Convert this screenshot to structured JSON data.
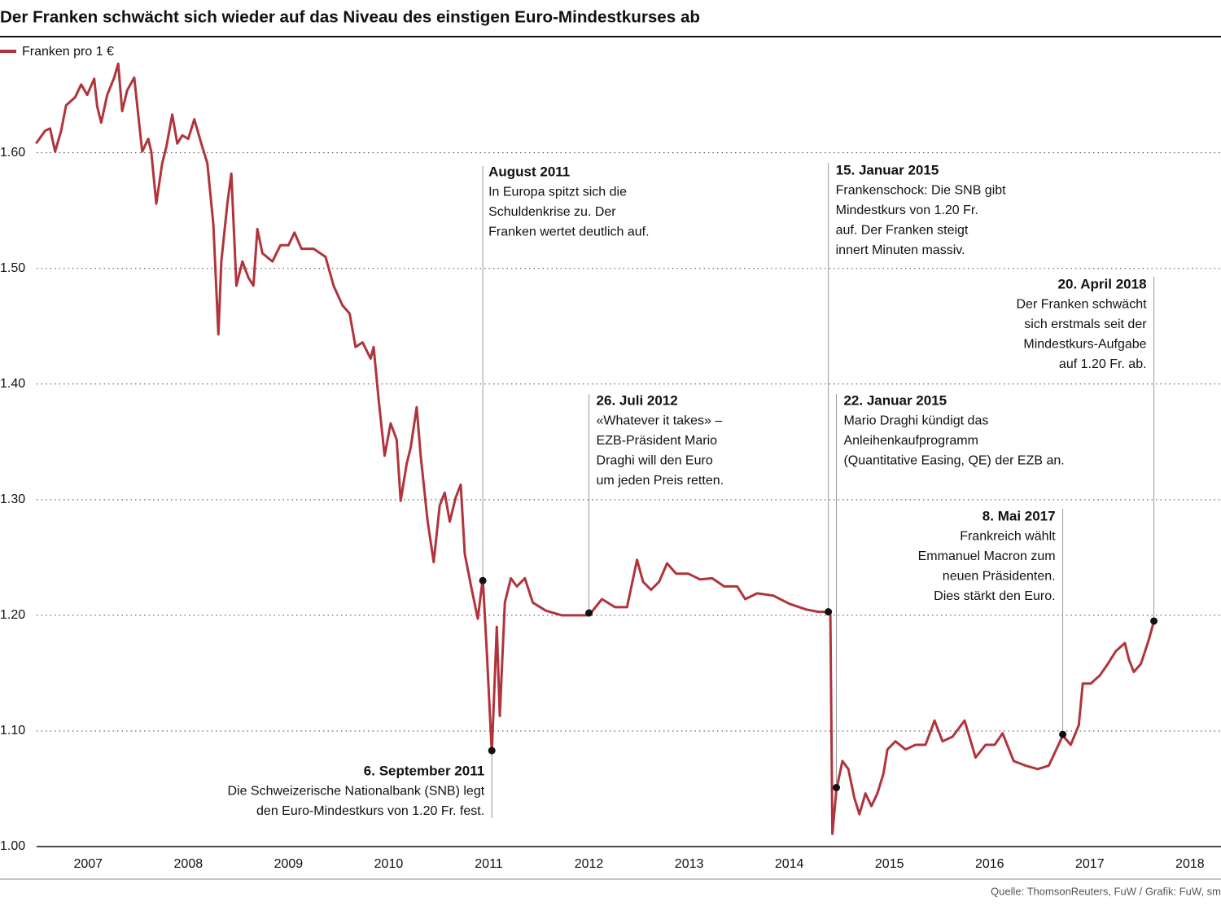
{
  "chart_data": {
    "type": "line",
    "title": "Der Franken schwächt sich wieder auf das Niveau des einstigen Euro-Mindestkurses ab",
    "source": "Quelle: ThomsonReuters, FuW / Grafik: FuW, sm",
    "xlim": [
      2006.62,
      2018.81
    ],
    "ylim": [
      1.0,
      1.7
    ],
    "xticks": [
      {
        "value": 2007.5,
        "label": "2007"
      },
      {
        "value": 2008.5,
        "label": "2008"
      },
      {
        "value": 2009.5,
        "label": "2009"
      },
      {
        "value": 2010.5,
        "label": "2010"
      },
      {
        "value": 2011.5,
        "label": "2011"
      },
      {
        "value": 2012.5,
        "label": "2012"
      },
      {
        "value": 2013.5,
        "label": "2013"
      },
      {
        "value": 2014.5,
        "label": "2014"
      },
      {
        "value": 2015.5,
        "label": "2015"
      },
      {
        "value": 2016.5,
        "label": "2016"
      },
      {
        "value": 2017.5,
        "label": "2017"
      },
      {
        "value": 2018.5,
        "label": "2018"
      }
    ],
    "yticks": [
      {
        "value": 1.0,
        "label": "1.00"
      },
      {
        "value": 1.1,
        "label": "1.10"
      },
      {
        "value": 1.2,
        "label": "1.20"
      },
      {
        "value": 1.3,
        "label": "1.30"
      },
      {
        "value": 1.4,
        "label": "1.40"
      },
      {
        "value": 1.5,
        "label": "1.50"
      },
      {
        "value": 1.6,
        "label": "1.60"
      }
    ],
    "grid": true,
    "series": [
      {
        "name": "Franken pro 1 €",
        "color": "#b0343c",
        "x": [
          2006.98,
          2007.07,
          2007.12,
          2007.17,
          2007.23,
          2007.28,
          2007.37,
          2007.43,
          2007.49,
          2007.56,
          2007.59,
          2007.63,
          2007.69,
          2007.76,
          2007.8,
          2007.84,
          2007.89,
          2007.96,
          2008.04,
          2008.1,
          2008.13,
          2008.18,
          2008.24,
          2008.28,
          2008.34,
          2008.39,
          2008.44,
          2008.5,
          2008.56,
          2008.63,
          2008.69,
          2008.75,
          2008.8,
          2008.83,
          2008.89,
          2008.93,
          2008.98,
          2009.04,
          2009.1,
          2009.15,
          2009.19,
          2009.24,
          2009.34,
          2009.42,
          2009.5,
          2009.56,
          2009.63,
          2009.75,
          2009.87,
          2009.95,
          2010.04,
          2010.11,
          2010.17,
          2010.24,
          2010.32,
          2010.35,
          2010.4,
          2010.46,
          2010.52,
          2010.58,
          2010.62,
          2010.68,
          2010.72,
          2010.78,
          2010.82,
          2010.89,
          2010.95,
          2011.01,
          2011.06,
          2011.11,
          2011.17,
          2011.22,
          2011.26,
          2011.33,
          2011.39,
          2011.44,
          2011.48,
          2011.53,
          2011.58,
          2011.61,
          2011.66,
          2011.72,
          2011.78,
          2011.86,
          2011.94,
          2012.07,
          2012.23,
          2012.5,
          2012.63,
          2012.76,
          2012.88,
          2012.98,
          2013.04,
          2013.12,
          2013.2,
          2013.28,
          2013.37,
          2013.49,
          2013.61,
          2013.73,
          2013.85,
          2013.98,
          2014.06,
          2014.18,
          2014.34,
          2014.5,
          2014.67,
          2014.79,
          2014.89,
          2014.91,
          2014.93,
          2014.97,
          2015.03,
          2015.09,
          2015.15,
          2015.2,
          2015.26,
          2015.32,
          2015.38,
          2015.44,
          2015.48,
          2015.56,
          2015.66,
          2015.76,
          2015.86,
          2015.95,
          2016.03,
          2016.13,
          2016.25,
          2016.36,
          2016.46,
          2016.55,
          2016.63,
          2016.74,
          2016.86,
          2016.98,
          2017.09,
          2017.23,
          2017.31,
          2017.39,
          2017.43,
          2017.51,
          2017.6,
          2017.68,
          2017.76,
          2017.85,
          2017.89,
          2017.94,
          2018.01,
          2018.09,
          2018.14
        ],
        "values": [
          1.608,
          1.619,
          1.621,
          1.601,
          1.619,
          1.641,
          1.648,
          1.659,
          1.65,
          1.664,
          1.64,
          1.626,
          1.65,
          1.665,
          1.677,
          1.636,
          1.654,
          1.665,
          1.601,
          1.612,
          1.601,
          1.556,
          1.591,
          1.605,
          1.633,
          1.608,
          1.615,
          1.612,
          1.629,
          1.608,
          1.591,
          1.538,
          1.443,
          1.506,
          1.556,
          1.582,
          1.485,
          1.506,
          1.492,
          1.485,
          1.534,
          1.513,
          1.506,
          1.52,
          1.52,
          1.531,
          1.517,
          1.517,
          1.51,
          1.485,
          1.468,
          1.461,
          1.432,
          1.436,
          1.422,
          1.432,
          1.387,
          1.338,
          1.366,
          1.352,
          1.299,
          1.331,
          1.345,
          1.38,
          1.338,
          1.281,
          1.246,
          1.295,
          1.306,
          1.281,
          1.302,
          1.313,
          1.253,
          1.222,
          1.197,
          1.232,
          1.169,
          1.081,
          1.19,
          1.113,
          1.211,
          1.232,
          1.225,
          1.232,
          1.211,
          1.204,
          1.2,
          1.2,
          1.214,
          1.207,
          1.207,
          1.248,
          1.229,
          1.222,
          1.229,
          1.245,
          1.236,
          1.236,
          1.231,
          1.232,
          1.225,
          1.225,
          1.214,
          1.219,
          1.217,
          1.21,
          1.205,
          1.203,
          1.203,
          1.2,
          1.011,
          1.049,
          1.074,
          1.067,
          1.042,
          1.028,
          1.046,
          1.035,
          1.046,
          1.063,
          1.084,
          1.091,
          1.084,
          1.088,
          1.088,
          1.109,
          1.091,
          1.095,
          1.109,
          1.077,
          1.088,
          1.088,
          1.098,
          1.074,
          1.07,
          1.067,
          1.07,
          1.096,
          1.088,
          1.105,
          1.141,
          1.141,
          1.148,
          1.158,
          1.169,
          1.176,
          1.162,
          1.151,
          1.158,
          1.179,
          1.195
        ]
      }
    ],
    "annotations": [
      {
        "x": 2011.44,
        "value": 1.23,
        "title": "August 2011",
        "lines": [
          "In Europa spitzt sich die",
          "Schuldenkrise zu. Der",
          "Franken wertet deutlich auf."
        ]
      },
      {
        "x": 2011.53,
        "value": 1.083,
        "title": "6. September 2011",
        "lines": [
          "Die Schweizerische Nationalbank (SNB) legt",
          "den Euro-Mindestkurs von 1.20 Fr. fest."
        ]
      },
      {
        "x": 2012.5,
        "value": 1.202,
        "title": "26. Juli 2012",
        "lines": [
          "«Whatever it takes» –",
          "EZB-Präsident Mario",
          "Draghi will den Euro",
          "um jeden Preis retten."
        ]
      },
      {
        "x": 2014.89,
        "value": 1.203,
        "title": "15. Januar 2015",
        "lines": [
          "Frankenschock: Die SNB gibt",
          "Mindestkurs von 1.20 Fr.",
          "auf. Der Franken steigt",
          "innert Minuten massiv."
        ]
      },
      {
        "x": 2014.97,
        "value": 1.051,
        "title": "22. Januar 2015",
        "lines": [
          "Mario Draghi kündigt das",
          "Anleihenkaufprogramm",
          "(Quantitative Easing, QE) der EZB an."
        ]
      },
      {
        "x": 2017.23,
        "value": 1.097,
        "title": "8. Mai 2017",
        "lines": [
          "Frankreich wählt",
          "Emmanuel Macron zum",
          "neuen Präsidenten.",
          "Dies stärkt den Euro."
        ]
      },
      {
        "x": 2018.14,
        "value": 1.195,
        "title": "20. April 2018",
        "lines": [
          "Der Franken schwächt",
          "sich erstmals seit der",
          "Mindestkurs-Aufgabe",
          "auf 1.20 Fr. ab."
        ]
      }
    ]
  }
}
